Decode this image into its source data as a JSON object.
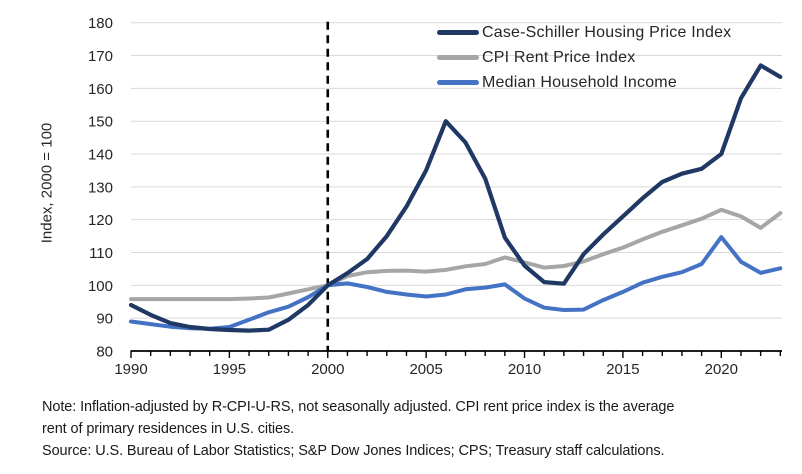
{
  "chart_data": {
    "type": "line",
    "x_start": 1990,
    "x_end": 2023,
    "x": [
      1990,
      1991,
      1992,
      1993,
      1994,
      1995,
      1996,
      1997,
      1998,
      1999,
      2000,
      2001,
      2002,
      2003,
      2004,
      2005,
      2006,
      2007,
      2008,
      2009,
      2010,
      2011,
      2012,
      2013,
      2014,
      2015,
      2016,
      2017,
      2018,
      2019,
      2020,
      2021,
      2022,
      2023
    ],
    "series": [
      {
        "name": "Case-Schiller Housing Price Index",
        "color": "#1f3864",
        "values": [
          94,
          91,
          88.5,
          87.3,
          86.7,
          86.4,
          86.2,
          86.5,
          89.5,
          94,
          100,
          103.7,
          108,
          115,
          124,
          135,
          150,
          143.5,
          132.5,
          114.5,
          106,
          101,
          100.5,
          109.5,
          115.5,
          121,
          126.5,
          131.5,
          134,
          135.5,
          140,
          157,
          167,
          163.5
        ]
      },
      {
        "name": "CPI Rent Price Index",
        "color": "#a6a6a6",
        "values": [
          95.8,
          95.8,
          95.8,
          95.8,
          95.8,
          95.8,
          96,
          96.3,
          97.5,
          98.8,
          100,
          102.8,
          104,
          104.4,
          104.5,
          104.2,
          104.7,
          105.8,
          106.5,
          108.5,
          107,
          105.4,
          105.9,
          107.3,
          109.5,
          111.5,
          114,
          116.3,
          118.3,
          120.3,
          123,
          121,
          117.5,
          122
        ]
      },
      {
        "name": "Median Household Income",
        "color": "#4472c4",
        "values": [
          89,
          88.2,
          87.4,
          86.9,
          86.8,
          87.3,
          89.5,
          91.8,
          93.5,
          96.4,
          100,
          100.6,
          99.5,
          98,
          97.2,
          96.6,
          97.2,
          98.8,
          99.3,
          100.3,
          96,
          93.2,
          92.5,
          92.6,
          95.5,
          98,
          100.8,
          102.6,
          104,
          106.5,
          114.7,
          107.2,
          103.8,
          105.2
        ]
      }
    ],
    "ylabel": "Index, 2000 = 100",
    "xlabel": "",
    "title": "",
    "ylim": [
      80,
      180
    ],
    "y_ticks": [
      180,
      170,
      160,
      150,
      140,
      130,
      120,
      110,
      100,
      90,
      80
    ],
    "x_ticks": [
      1990,
      1995,
      2000,
      2005,
      2010,
      2015,
      2020
    ],
    "annotation_vline_year": 2000,
    "grid": "horizontal",
    "gridline_color": "#d9d9d9",
    "axis_color": "#000000",
    "legend_position": "top-right"
  },
  "footnote": {
    "note_line1": "Note: Inflation-adjusted by R-CPI-U-RS, not seasonally adjusted. CPI rent price index is the average",
    "note_line2": "rent of primary residences in U.S. cities.",
    "source_line": "Source: U.S. Bureau of Labor Statistics; S&P Dow Jones Indices; CPS; Treasury staff calculations."
  }
}
